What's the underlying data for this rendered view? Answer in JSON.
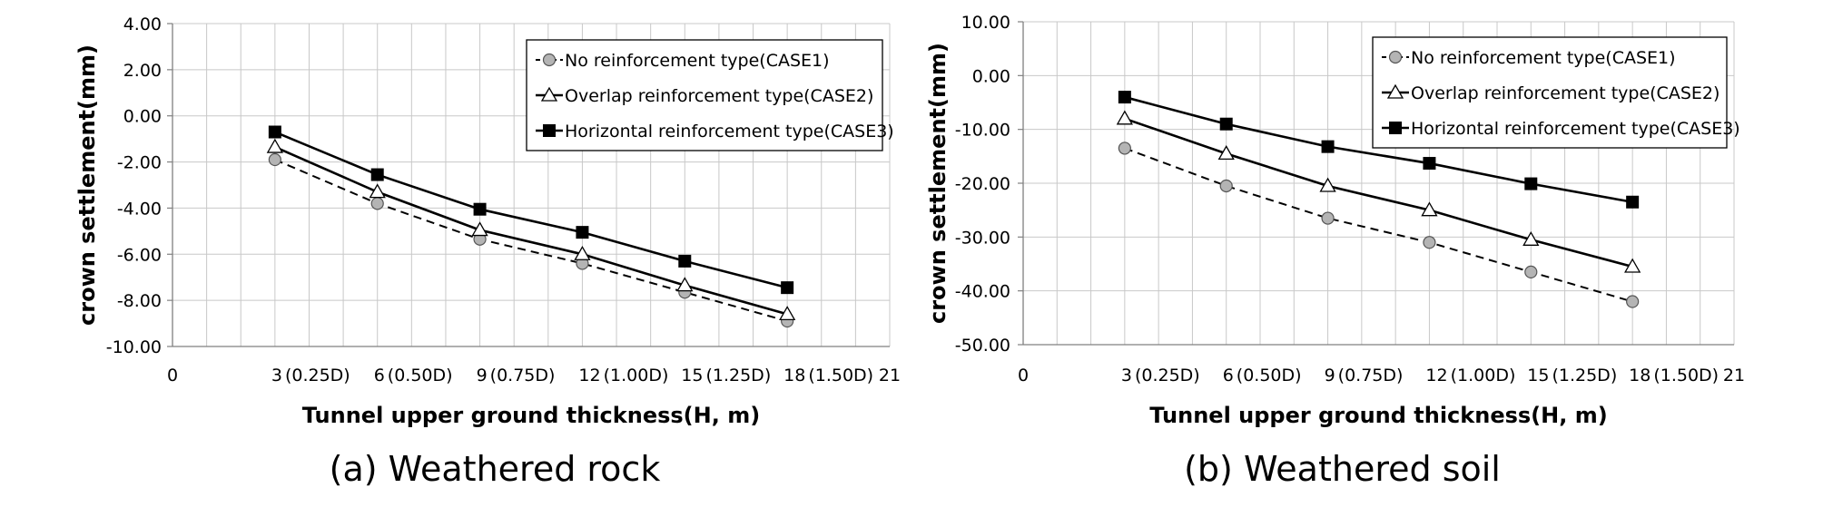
{
  "chart_data": [
    {
      "type": "line",
      "caption": "(a) Weathered rock",
      "ylabel": "crown settlement(mm)",
      "xlabel": "Tunnel upper ground thickness(H, m)",
      "xlim": [
        0,
        21
      ],
      "ylim": [
        -10,
        4
      ],
      "ytick_labels": [
        "4.00",
        "2.00",
        "0.00",
        "-2.00",
        "-4.00",
        "-6.00",
        "-8.00",
        "-10.00"
      ],
      "ytick_values": [
        4,
        2,
        0,
        -2,
        -4,
        -6,
        -8,
        -10
      ],
      "xtick_labels": [
        {
          "x": 0,
          "num": "0",
          "sub": ""
        },
        {
          "x": 3,
          "num": "3",
          "sub": "(0.25D)"
        },
        {
          "x": 6,
          "num": "6",
          "sub": "(0.50D)"
        },
        {
          "x": 9,
          "num": "9",
          "sub": "(0.75D)"
        },
        {
          "x": 12,
          "num": "12",
          "sub": "(1.00D)"
        },
        {
          "x": 15,
          "num": "15",
          "sub": "(1.25D)"
        },
        {
          "x": 18,
          "num": "18",
          "sub": "(1.50D)"
        },
        {
          "x": 21,
          "num": "21",
          "sub": ""
        }
      ],
      "x": [
        3,
        6,
        9,
        12,
        15,
        18
      ],
      "grid": true,
      "legend_position": "top-right",
      "series": [
        {
          "name": "No reinforcement type(CASE1)",
          "marker": "circle",
          "line": "dashed",
          "values": [
            -1.9,
            -3.8,
            -5.35,
            -6.4,
            -7.65,
            -8.9
          ]
        },
        {
          "name": "Overlap reinforcement type(CASE2)",
          "marker": "triangle",
          "line": "solid",
          "values": [
            -1.35,
            -3.3,
            -4.95,
            -6.0,
            -7.35,
            -8.6
          ]
        },
        {
          "name": "Horizontal reinforcement type(CASE3)",
          "marker": "square",
          "line": "solid",
          "values": [
            -0.7,
            -2.55,
            -4.05,
            -5.05,
            -6.3,
            -7.45
          ]
        }
      ]
    },
    {
      "type": "line",
      "caption": "(b) Weathered soil",
      "ylabel": "crown settlement(mm)",
      "xlabel": "Tunnel upper ground thickness(H, m)",
      "xlim": [
        0,
        21
      ],
      "ylim": [
        -50,
        10
      ],
      "ytick_labels": [
        "10.00",
        "0.00",
        "-10.00",
        "-20.00",
        "-30.00",
        "-40.00",
        "-50.00"
      ],
      "ytick_values": [
        10,
        0,
        -10,
        -20,
        -30,
        -40,
        -50
      ],
      "xtick_labels": [
        {
          "x": 0,
          "num": "0",
          "sub": ""
        },
        {
          "x": 3,
          "num": "3",
          "sub": "(0.25D)"
        },
        {
          "x": 6,
          "num": "6",
          "sub": "(0.50D)"
        },
        {
          "x": 9,
          "num": "9",
          "sub": "(0.75D)"
        },
        {
          "x": 12,
          "num": "12",
          "sub": "(1.00D)"
        },
        {
          "x": 15,
          "num": "15",
          "sub": "(1.25D)"
        },
        {
          "x": 18,
          "num": "18",
          "sub": "(1.50D)"
        },
        {
          "x": 21,
          "num": "21",
          "sub": ""
        }
      ],
      "x": [
        3,
        6,
        9,
        12,
        15,
        18
      ],
      "grid": true,
      "legend_position": "top-right",
      "series": [
        {
          "name": "No reinforcement type(CASE1)",
          "marker": "circle",
          "line": "dashed",
          "values": [
            -13.5,
            -20.5,
            -26.5,
            -31.0,
            -36.5,
            -42.0
          ]
        },
        {
          "name": "Overlap reinforcement type(CASE2)",
          "marker": "triangle",
          "line": "solid",
          "values": [
            -8.0,
            -14.5,
            -20.5,
            -25.0,
            -30.5,
            -35.5
          ]
        },
        {
          "name": "Horizontal reinforcement type(CASE3)",
          "marker": "square",
          "line": "solid",
          "values": [
            -4.0,
            -9.0,
            -13.2,
            -16.3,
            -20.1,
            -23.5
          ]
        }
      ]
    }
  ],
  "colors": {
    "grid": "#c8c8c8",
    "axis": "#808080",
    "line": "#000000",
    "circle_fill": "#b4b4b4",
    "triangle_fill": "#ffffff",
    "square_fill": "#000000"
  }
}
